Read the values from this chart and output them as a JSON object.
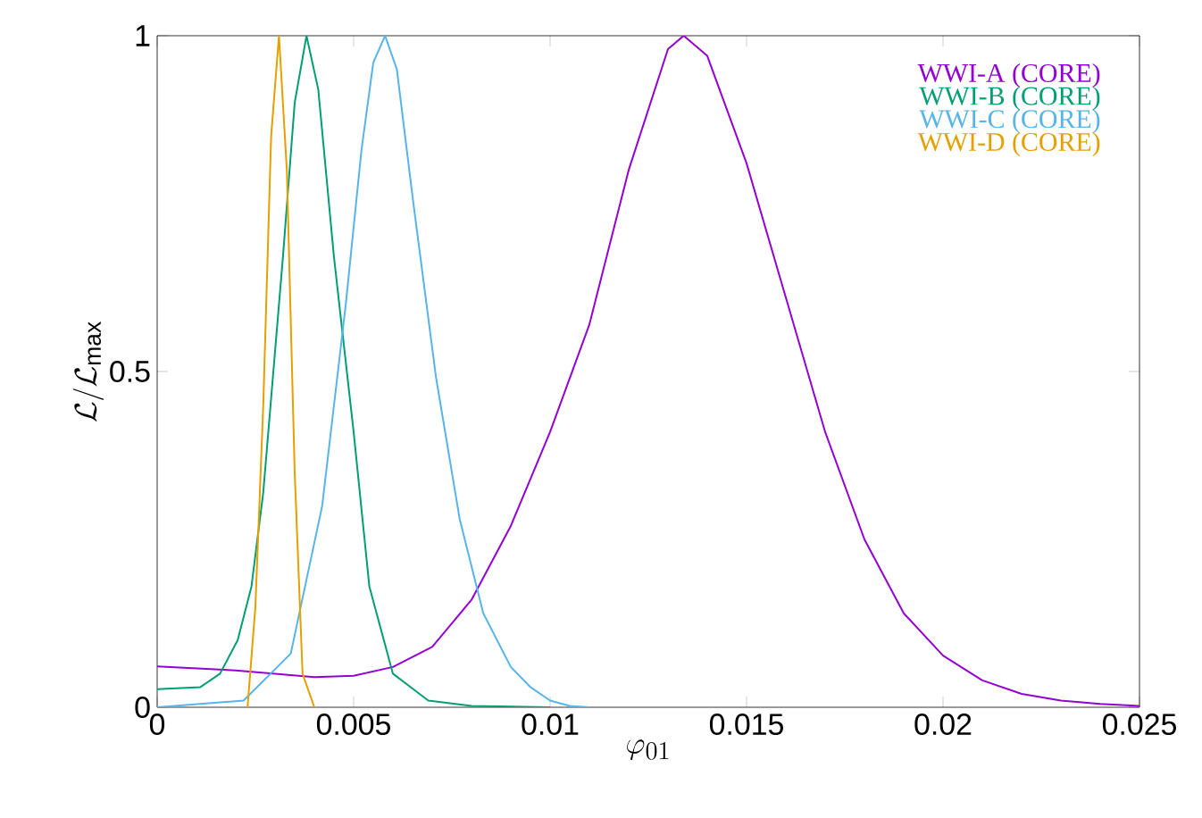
{
  "chart_data": {
    "type": "line",
    "xlabel": "\\varphi_{01}",
    "ylabel": "\\mathcal{L}/\\mathcal{L}_{\\max}",
    "xlim": [
      0,
      0.025
    ],
    "ylim": [
      0,
      1
    ],
    "xticks": [
      0,
      0.005,
      0.01,
      0.015,
      0.02,
      0.025
    ],
    "yticks": [
      0,
      0.5,
      1
    ],
    "legend": "top right",
    "series": [
      {
        "name": "WWI-A (CORE)",
        "color": "#9400d3",
        "x": [
          0,
          0.002,
          0.004,
          0.005,
          0.006,
          0.007,
          0.008,
          0.009,
          0.01,
          0.011,
          0.012,
          0.013,
          0.0134,
          0.014,
          0.015,
          0.016,
          0.017,
          0.018,
          0.019,
          0.02,
          0.021,
          0.022,
          0.023,
          0.024,
          0.025
        ],
        "values": [
          0.061,
          0.055,
          0.045,
          0.047,
          0.06,
          0.09,
          0.16,
          0.27,
          0.41,
          0.57,
          0.8,
          0.98,
          1,
          0.97,
          0.81,
          0.61,
          0.41,
          0.25,
          0.14,
          0.077,
          0.04,
          0.02,
          0.01,
          0.005,
          0.002
        ]
      },
      {
        "name": "WWI-B (CORE)",
        "color": "#009e73",
        "x": [
          0,
          0.0011,
          0.0016,
          0.00205,
          0.0024,
          0.0027,
          0.0032,
          0.0035,
          0.0038,
          0.0041,
          0.0045,
          0.005,
          0.0054,
          0.006,
          0.0069,
          0.008,
          0.01
        ],
        "values": [
          0.027,
          0.03,
          0.05,
          0.1,
          0.18,
          0.32,
          0.67,
          0.9,
          1,
          0.92,
          0.67,
          0.41,
          0.18,
          0.05,
          0.01,
          0.002,
          0
        ]
      },
      {
        "name": "WWI-C (CORE)",
        "color": "#56b4e9",
        "x": [
          0,
          0.0022,
          0.0034,
          0.0042,
          0.0048,
          0.0052,
          0.0055,
          0.0058,
          0.0061,
          0.0065,
          0.0071,
          0.0077,
          0.0083,
          0.009,
          0.0095,
          0.01,
          0.0105,
          0.011
        ],
        "values": [
          0,
          0.01,
          0.08,
          0.3,
          0.6,
          0.83,
          0.96,
          1,
          0.95,
          0.76,
          0.49,
          0.28,
          0.14,
          0.06,
          0.03,
          0.01,
          0.002,
          0
        ]
      },
      {
        "name": "WWI-D (CORE)",
        "color": "#e69f00",
        "x": [
          0.0023,
          0.0025,
          0.0027,
          0.0029,
          0.0031,
          0.0033,
          0.0035,
          0.0037,
          0.004
        ],
        "values": [
          0,
          0.15,
          0.45,
          0.85,
          1,
          0.8,
          0.35,
          0.05,
          0
        ]
      }
    ]
  }
}
